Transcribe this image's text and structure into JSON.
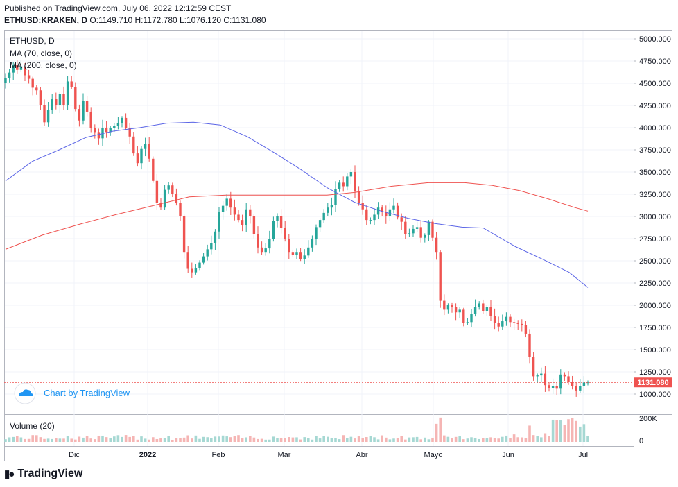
{
  "header": {
    "published": "Published on TradingView.com, July 06, 2022 12:12:59 CEST",
    "symbol": "ETHUSD:KRAKEN, D",
    "ohlc": "O:1149.710 H:1172.780 L:1076.120 C:1131.080"
  },
  "legend": {
    "symbol": "ETHUSD, D",
    "ma70": "MA (70, close, 0)",
    "ma200": "MA (200, close, 0)"
  },
  "volume_label": "Volume (20)",
  "watermark": "Chart by TradingView",
  "brand": "TradingView",
  "colors": {
    "up": "#26a69a",
    "down": "#ef5350",
    "ma70": "#5b65e6",
    "ma200": "#ef5350",
    "price_tag": "#ef5350"
  },
  "chart_data": {
    "type": "candlestick",
    "title": "ETHUSD, D",
    "price_axis": {
      "ticks": [
        5000,
        4750,
        4500,
        4250,
        4000,
        3750,
        3500,
        3250,
        3000,
        2750,
        2500,
        2250,
        2000,
        1750,
        1500,
        1250,
        1000
      ],
      "tick_labels": [
        "5000.000",
        "4750.000",
        "4500.000",
        "4250.000",
        "4000.000",
        "3750.000",
        "3500.000",
        "3250.000",
        "3000.000",
        "2750.000",
        "2500.000",
        "2250.000",
        "2000.000",
        "1750.000",
        "1500.000",
        "1250.000",
        "1000.000"
      ],
      "ylim": [
        880,
        5080
      ]
    },
    "volume_axis": {
      "ticks": [
        "200K",
        "0"
      ]
    },
    "time_axis": {
      "labels": [
        "Dic",
        "2022",
        "Feb",
        "Mar",
        "Abr",
        "Mayo",
        "Jun",
        "Jul"
      ]
    },
    "last_price": {
      "value": 1131.08,
      "label": "1131.080"
    },
    "close_series": [
      4560,
      4620,
      4710,
      4650,
      4690,
      4590,
      4550,
      4450,
      4420,
      4250,
      4060,
      4200,
      4320,
      4250,
      4380,
      4250,
      4520,
      4460,
      4210,
      4080,
      4300,
      4180,
      4000,
      3950,
      3880,
      4000,
      3950,
      4000,
      4020,
      4050,
      4110,
      4000,
      3900,
      3710,
      3600,
      3760,
      3820,
      3650,
      3400,
      3150,
      3100,
      3300,
      3350,
      3250,
      3150,
      3000,
      2600,
      2410,
      2370,
      2420,
      2480,
      2550,
      2630,
      2700,
      2830,
      3050,
      3120,
      3200,
      3100,
      3020,
      2960,
      2900,
      3080,
      3000,
      2800,
      2650,
      2600,
      2640,
      2750,
      2950,
      3000,
      2870,
      2750,
      2600,
      2570,
      2600,
      2520,
      2560,
      2650,
      2750,
      2880,
      2960,
      3040,
      3100,
      3130,
      3310,
      3380,
      3340,
      3450,
      3500,
      3280,
      3150,
      3080,
      2960,
      2960,
      3020,
      3100,
      3050,
      3000,
      3080,
      3120,
      2990,
      2940,
      2800,
      2810,
      2860,
      2880,
      2760,
      2790,
      2940,
      2760,
      2600,
      2050,
      1950,
      2000,
      1980,
      1920,
      1950,
      1800,
      1810,
      1900,
      1980,
      2020,
      1930,
      1980,
      1880,
      1800,
      1760,
      1820,
      1870,
      1810,
      1800,
      1790,
      1780,
      1680,
      1420,
      1200,
      1210,
      1230,
      1100,
      1070,
      1090,
      1060,
      1220,
      1200,
      1140,
      1090,
      1040,
      1090,
      1130,
      1131.08
    ],
    "ma70": [
      [
        0,
        3400
      ],
      [
        10,
        3620
      ],
      [
        20,
        3750
      ],
      [
        30,
        3890
      ],
      [
        40,
        3960
      ],
      [
        50,
        4000
      ],
      [
        60,
        4050
      ],
      [
        70,
        4060
      ],
      [
        80,
        4030
      ],
      [
        90,
        3900
      ],
      [
        100,
        3720
      ],
      [
        110,
        3530
      ],
      [
        120,
        3320
      ],
      [
        130,
        3160
      ],
      [
        140,
        3060
      ],
      [
        150,
        2980
      ],
      [
        160,
        2920
      ],
      [
        170,
        2880
      ],
      [
        178,
        2870
      ],
      [
        190,
        2660
      ],
      [
        200,
        2520
      ],
      [
        210,
        2370
      ],
      [
        217,
        2200
      ]
    ],
    "ma200": [
      [
        0,
        2630
      ],
      [
        20,
        2790
      ],
      [
        40,
        2910
      ],
      [
        60,
        3020
      ],
      [
        80,
        3120
      ],
      [
        100,
        3220
      ],
      [
        120,
        3240
      ],
      [
        140,
        3240
      ],
      [
        160,
        3240
      ],
      [
        175,
        3240
      ],
      [
        190,
        3270
      ],
      [
        210,
        3340
      ],
      [
        230,
        3380
      ],
      [
        250,
        3380
      ],
      [
        265,
        3350
      ],
      [
        280,
        3290
      ],
      [
        295,
        3200
      ],
      [
        310,
        3100
      ],
      [
        317,
        3060
      ]
    ]
  }
}
